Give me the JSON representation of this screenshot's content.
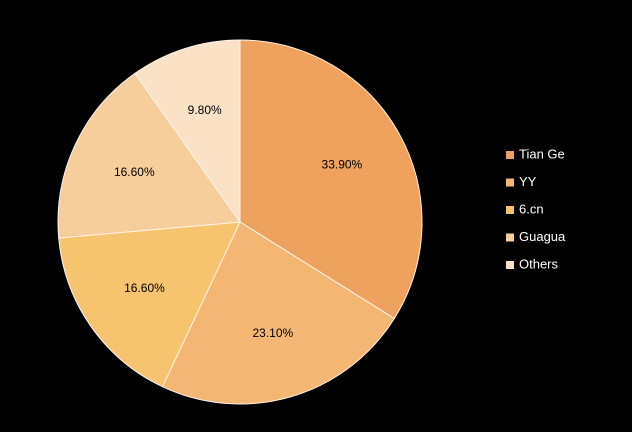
{
  "chart_data": {
    "type": "pie",
    "categories": [
      "Tian Ge",
      "YY",
      "6.cn",
      "Guagua",
      "Others"
    ],
    "values": [
      33.9,
      23.1,
      16.6,
      16.6,
      9.8
    ],
    "value_labels": [
      "33.90%",
      "23.10%",
      "16.60%",
      "16.60%",
      "9.80%"
    ],
    "colors": [
      "#eea25e",
      "#f4b673",
      "#f6c46f",
      "#f7cd9c",
      "#fbe2c6"
    ],
    "legend": "right"
  }
}
